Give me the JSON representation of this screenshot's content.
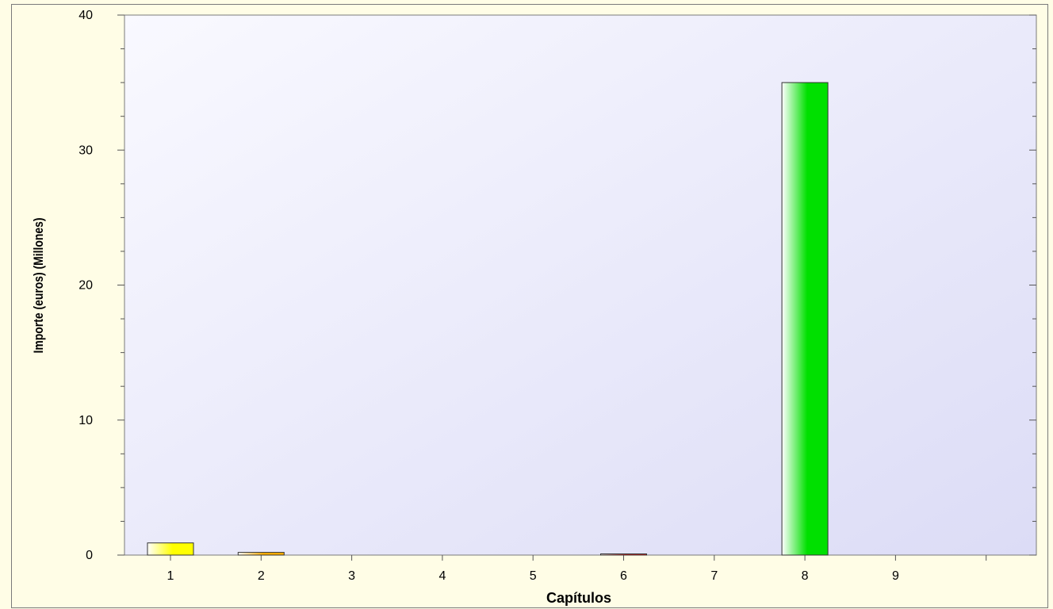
{
  "chart_data": {
    "type": "bar",
    "xlabel": "Capítulos",
    "ylabel": "Importe (euros) (Millones)",
    "categories": [
      "1",
      "2",
      "3",
      "4",
      "5",
      "6",
      "7",
      "8",
      "9"
    ],
    "values": [
      0.9,
      0.2,
      0,
      0,
      0,
      0.05,
      0,
      35,
      0
    ],
    "ylim": [
      0,
      40
    ],
    "yticks": [
      0,
      10,
      20,
      30,
      40
    ],
    "bar_colors": [
      "#ffff00",
      "#ffb000",
      "#c0c0c0",
      "#c0c0c0",
      "#c0c0c0",
      "#ff2020",
      "#c0c0c0",
      "#00e000",
      "#c0c0c0"
    ],
    "grid": false,
    "legend": "none"
  }
}
